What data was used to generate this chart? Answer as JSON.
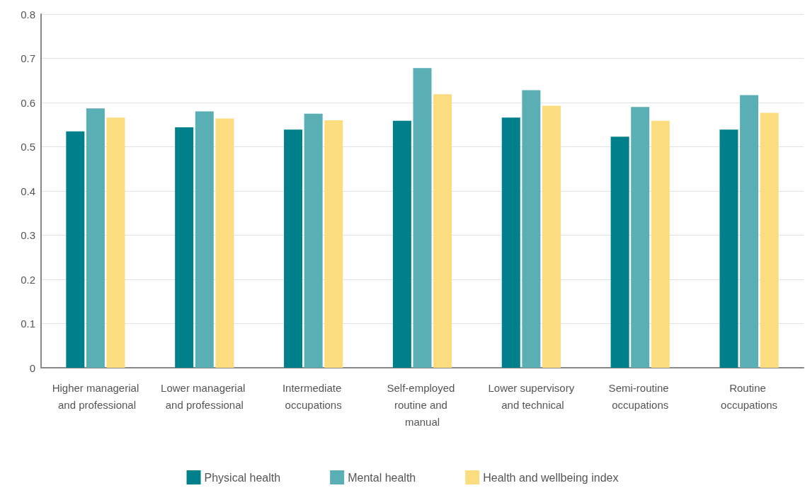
{
  "chart_data": {
    "type": "bar",
    "categories": [
      "Higher managerial and professional",
      "Lower managerial and professional",
      "Intermediate occupations",
      "Self-employed routine and manual",
      "Lower supervisory and technical",
      "Semi-routine occupations",
      "Routine occupations"
    ],
    "series": [
      {
        "name": "Physical health",
        "color": "#00808a",
        "values": [
          0.535,
          0.544,
          0.539,
          0.559,
          0.566,
          0.523,
          0.539
        ]
      },
      {
        "name": "Mental health",
        "color": "#5aafb5",
        "values": [
          0.587,
          0.58,
          0.575,
          0.678,
          0.628,
          0.59,
          0.617
        ]
      },
      {
        "name": "Health and wellbeing index",
        "color": "#fbdd80",
        "values": [
          0.566,
          0.564,
          0.56,
          0.619,
          0.593,
          0.559,
          0.577
        ]
      }
    ],
    "ylim": [
      0,
      0.8
    ],
    "yticks": [
      0,
      0.1,
      0.2,
      0.3,
      0.4,
      0.5,
      0.6,
      0.7,
      0.8
    ],
    "grid": "y",
    "legend": "bottom"
  }
}
